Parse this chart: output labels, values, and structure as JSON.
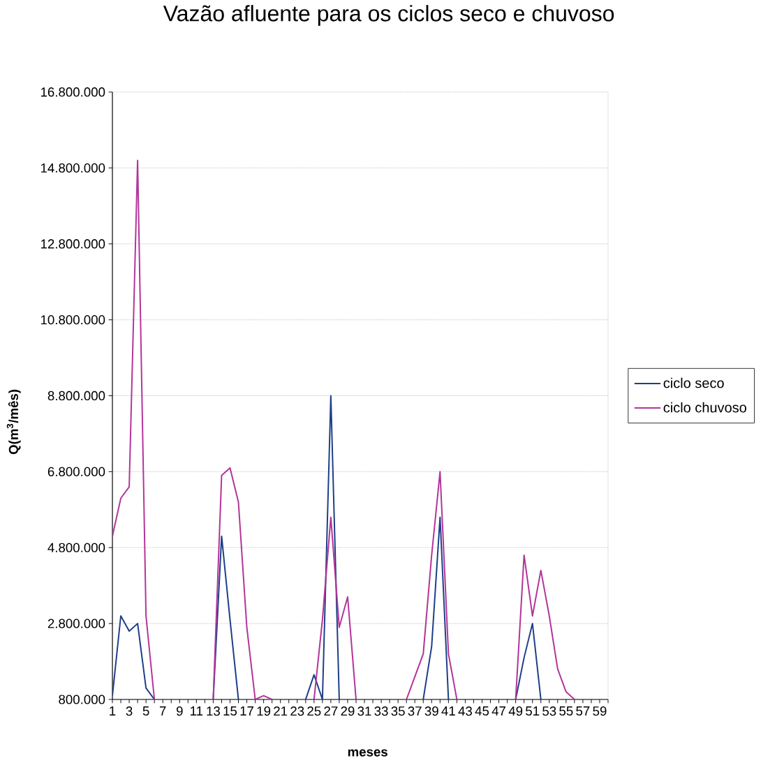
{
  "chart_data": {
    "type": "line",
    "title": "Vazão afluente para os ciclos seco e chuvoso",
    "xlabel": "meses",
    "ylabel": "Q(m$^{3}$/mês)",
    "categories": [
      "1",
      null,
      "3",
      null,
      "5",
      null,
      "7",
      null,
      "9",
      null,
      "11",
      null,
      "13",
      null,
      "15",
      null,
      "17",
      null,
      "19",
      null,
      "21",
      null,
      "23",
      null,
      "25",
      null,
      "27",
      null,
      "29",
      null,
      "31",
      null,
      "33",
      null,
      "35",
      null,
      "37",
      null,
      "39",
      null,
      "41",
      null,
      "43",
      null,
      "45",
      null,
      "47",
      null,
      "49",
      null,
      "51",
      null,
      "53",
      null,
      "55",
      null,
      "57",
      null,
      "59",
      null
    ],
    "series": [
      {
        "name": "ciclo seco",
        "color": "#1d3f87",
        "values": [
          900000,
          3000000,
          2600000,
          2800000,
          1100000,
          800000,
          null,
          null,
          null,
          null,
          null,
          null,
          800000,
          5100000,
          2900000,
          800000,
          null,
          null,
          null,
          null,
          null,
          null,
          null,
          800000,
          1450000,
          800000,
          8800000,
          800000,
          null,
          null,
          null,
          null,
          null,
          null,
          null,
          null,
          null,
          800000,
          2200000,
          5600000,
          800000,
          null,
          null,
          null,
          null,
          null,
          null,
          null,
          800000,
          1900000,
          2800000,
          800000,
          null,
          null,
          null,
          null,
          null,
          null,
          null,
          null
        ]
      },
      {
        "name": "ciclo chuvoso",
        "color": "#b3359a",
        "values": [
          5100000,
          6100000,
          6400000,
          15000000,
          3000000,
          800000,
          null,
          null,
          null,
          null,
          null,
          null,
          800000,
          6700000,
          6900000,
          6000000,
          2700000,
          800000,
          900000,
          800000,
          null,
          null,
          null,
          null,
          800000,
          2900000,
          5600000,
          2700000,
          3500000,
          800000,
          null,
          null,
          null,
          null,
          null,
          800000,
          1400000,
          2000000,
          4600000,
          6800000,
          2000000,
          800000,
          null,
          null,
          null,
          null,
          null,
          null,
          800000,
          4600000,
          3000000,
          4200000,
          3000000,
          1600000,
          1000000,
          800000,
          null,
          null,
          null,
          null
        ]
      }
    ],
    "ylim": [
      800000,
      16800000
    ],
    "yticks": [
      {
        "value": 800000,
        "label": "800.000"
      },
      {
        "value": 2800000,
        "label": "2.800.000"
      },
      {
        "value": 4800000,
        "label": "4.800.000"
      },
      {
        "value": 6800000,
        "label": "6.800.000"
      },
      {
        "value": 8800000,
        "label": "8.800.000"
      },
      {
        "value": 10800000,
        "label": "10.800.000"
      },
      {
        "value": 12800000,
        "label": "12.800.000"
      },
      {
        "value": 14800000,
        "label": "14.800.000"
      },
      {
        "value": 16800000,
        "label": "16.800.000"
      }
    ],
    "grid": "y",
    "legend": "right",
    "marker": "none"
  }
}
